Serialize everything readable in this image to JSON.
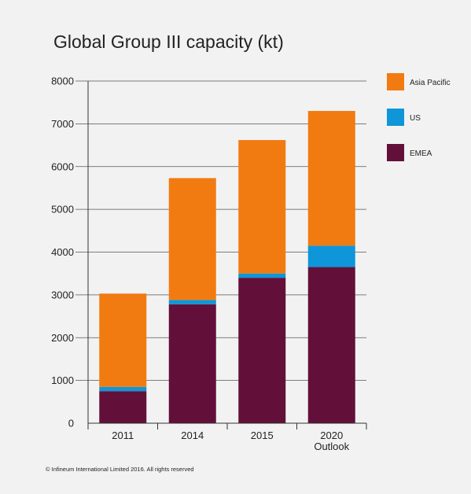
{
  "chart_data": {
    "type": "bar",
    "stacked": true,
    "title": "Global Group III capacity (kt)",
    "categories": [
      [
        "2011"
      ],
      [
        "2014"
      ],
      [
        "2015"
      ],
      [
        "2020",
        "Outlook"
      ]
    ],
    "series": [
      {
        "name": "EMEA",
        "color": "#62103a",
        "values": [
          750,
          2780,
          3400,
          3650
        ]
      },
      {
        "name": "US",
        "color": "#0e96d8",
        "values": [
          100,
          100,
          100,
          500
        ]
      },
      {
        "name": "Asia Pacific",
        "color": "#f17b11",
        "values": [
          2180,
          2850,
          3120,
          3150
        ]
      }
    ],
    "legend_order": [
      "Asia Pacific",
      "US",
      "EMEA"
    ],
    "legend_position": "right",
    "ylim": [
      0,
      8000
    ],
    "yticks": [
      0,
      1000,
      2000,
      3000,
      4000,
      5000,
      6000,
      7000,
      8000
    ],
    "grid": true,
    "xlabel": "",
    "ylabel": ""
  },
  "footer": {
    "copyright": "© Infineum International Limited 2016. All rights reserved"
  }
}
